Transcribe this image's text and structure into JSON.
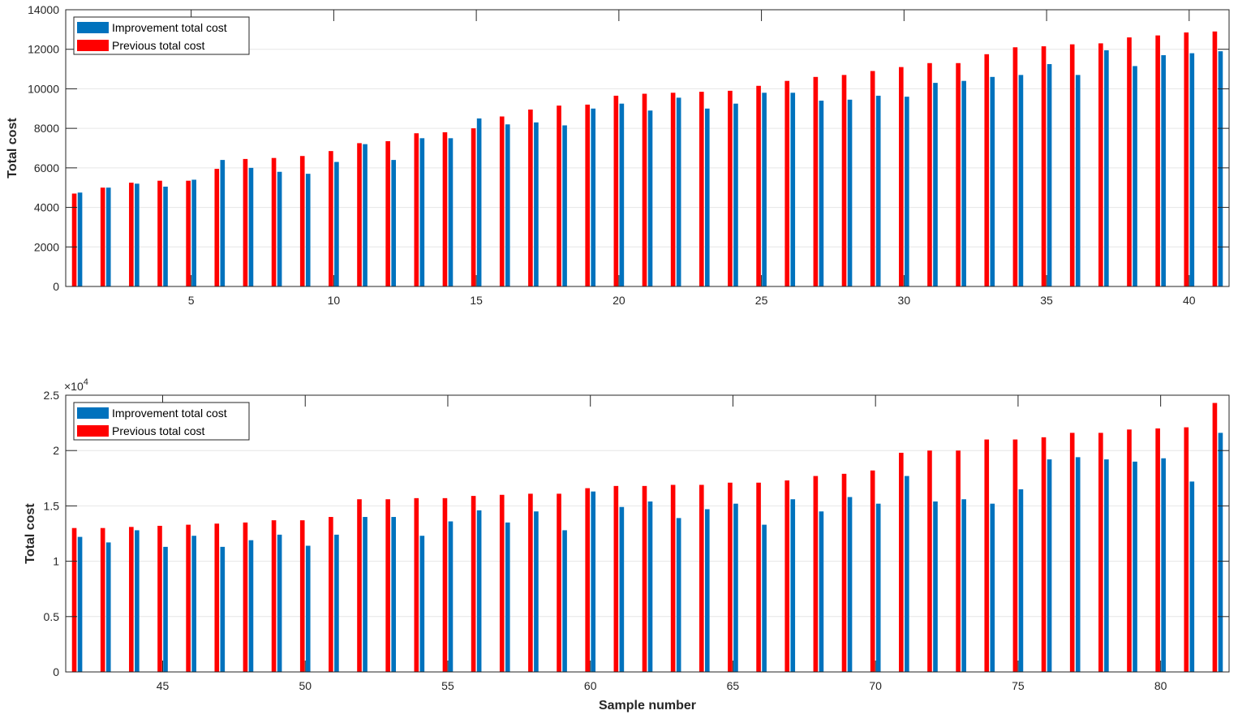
{
  "colors": {
    "improvement": "#0072bd",
    "previous": "#ff0000",
    "grid": "#e6e6e6",
    "axis": "#262626"
  },
  "chart_data": [
    {
      "type": "bar",
      "xlabel": "",
      "ylabel": "Total cost",
      "exponent_label": "",
      "x": [
        1,
        2,
        3,
        4,
        5,
        6,
        7,
        8,
        9,
        10,
        11,
        12,
        13,
        14,
        15,
        16,
        17,
        18,
        19,
        20,
        21,
        22,
        23,
        24,
        25,
        26,
        27,
        28,
        29,
        30,
        31,
        32,
        33,
        34,
        35,
        36,
        37,
        38,
        39,
        40,
        41
      ],
      "xlim": [
        0.6,
        41.4
      ],
      "xticks": [
        5,
        10,
        15,
        20,
        25,
        30,
        35,
        40
      ],
      "ylim": [
        0,
        14000
      ],
      "yticks": [
        0,
        2000,
        4000,
        6000,
        8000,
        10000,
        12000,
        14000
      ],
      "ytick_labels": [
        "0",
        "2000",
        "4000",
        "6000",
        "8000",
        "10000",
        "12000",
        "14000"
      ],
      "grid": true,
      "legend_position": "top-left",
      "series": [
        {
          "name": "Improvement total cost",
          "color": "#0072bd",
          "values": [
            4750,
            5000,
            5200,
            5050,
            5400,
            6400,
            6000,
            5800,
            5700,
            6300,
            7200,
            6400,
            7500,
            7500,
            8500,
            8200,
            8300,
            8150,
            9000,
            9250,
            8900,
            9550,
            9000,
            9250,
            9800,
            9800,
            9400,
            9450,
            9650,
            9600,
            10300,
            10400,
            10600,
            10700,
            11250,
            10700,
            11950,
            11150,
            11700,
            11800,
            11900
          ]
        },
        {
          "name": "Previous total cost",
          "color": "#ff0000",
          "values": [
            4700,
            5000,
            5250,
            5350,
            5350,
            5950,
            6450,
            6500,
            6600,
            6850,
            7250,
            7350,
            7750,
            7800,
            8000,
            8600,
            8950,
            9150,
            9200,
            9650,
            9750,
            9800,
            9850,
            9900,
            10150,
            10400,
            10600,
            10700,
            10900,
            11100,
            11300,
            11300,
            11750,
            12100,
            12150,
            12250,
            12300,
            12600,
            12700,
            12850,
            12900
          ]
        }
      ]
    },
    {
      "type": "bar",
      "xlabel": "Sample number",
      "ylabel": "Total cost",
      "exponent_label": "×10",
      "exponent_power": "4",
      "x": [
        42,
        43,
        44,
        45,
        46,
        47,
        48,
        49,
        50,
        51,
        52,
        53,
        54,
        55,
        56,
        57,
        58,
        59,
        60,
        61,
        62,
        63,
        64,
        65,
        66,
        67,
        68,
        69,
        70,
        71,
        72,
        73,
        74,
        75,
        76,
        77,
        78,
        79,
        80,
        81,
        82
      ],
      "xlim": [
        41.6,
        82.4
      ],
      "xticks": [
        45,
        50,
        55,
        60,
        65,
        70,
        75,
        80
      ],
      "ylim": [
        0,
        25000
      ],
      "yticks": [
        0,
        5000,
        10000,
        15000,
        20000,
        25000
      ],
      "ytick_labels": [
        "0",
        "0.5",
        "1",
        "1.5",
        "2",
        "2.5"
      ],
      "grid": true,
      "legend_position": "top-left",
      "series": [
        {
          "name": "Improvement total cost",
          "color": "#0072bd",
          "values": [
            12200,
            11700,
            12800,
            11300,
            12300,
            11300,
            11900,
            12400,
            11400,
            12400,
            14000,
            14000,
            12300,
            13600,
            14600,
            13500,
            14500,
            12800,
            16300,
            14900,
            15400,
            13900,
            14700,
            15200,
            13300,
            15600,
            14500,
            15800,
            15200,
            17700,
            15400,
            15600,
            15200,
            16500,
            19200,
            19400,
            19200,
            19000,
            19300,
            17200,
            21600
          ]
        },
        {
          "name": "Previous total cost",
          "color": "#ff0000",
          "values": [
            13000,
            13000,
            13100,
            13200,
            13300,
            13400,
            13500,
            13700,
            13700,
            14000,
            15600,
            15600,
            15700,
            15700,
            15900,
            16000,
            16100,
            16100,
            16600,
            16800,
            16800,
            16900,
            16900,
            17100,
            17100,
            17300,
            17700,
            17900,
            18200,
            19800,
            20000,
            20000,
            21000,
            21000,
            21200,
            21600,
            21600,
            21900,
            22000,
            22100,
            24300
          ]
        }
      ]
    }
  ]
}
